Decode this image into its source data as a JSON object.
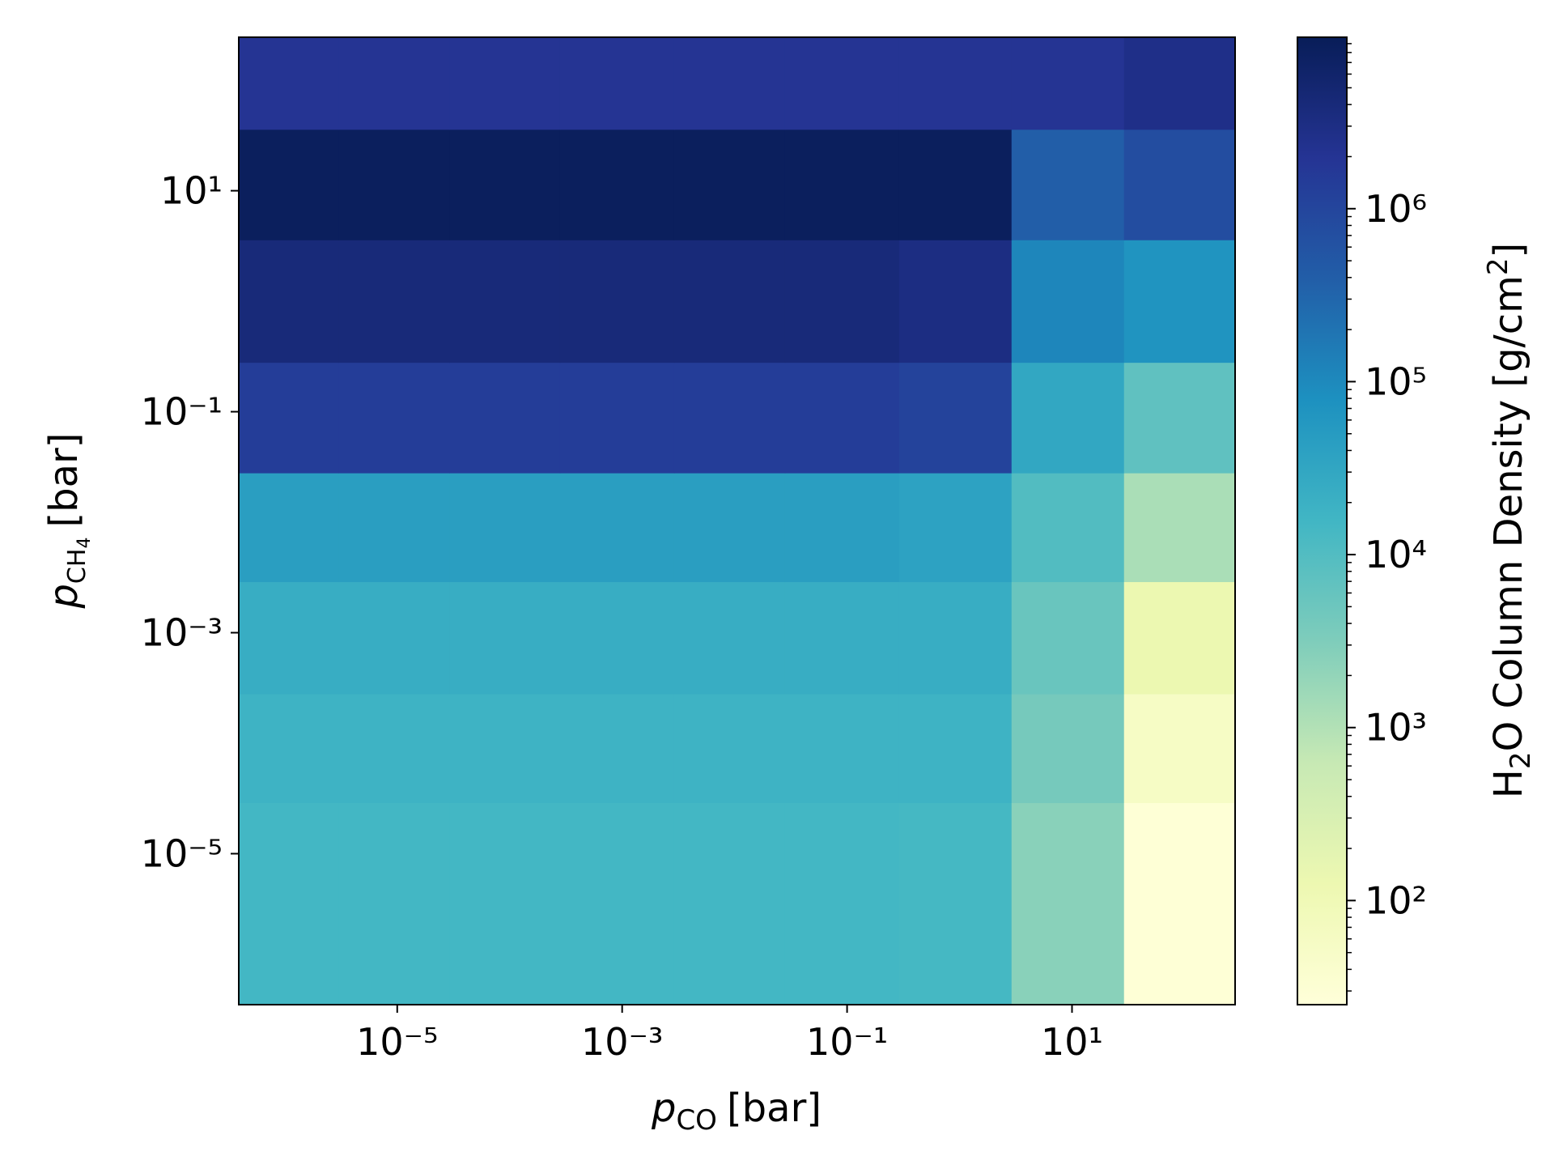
{
  "chart_data": {
    "type": "heatmap",
    "xscale": "log",
    "yscale": "log",
    "x_edges": [
      3.9e-07,
      3e-06,
      2.9e-05,
      0.00028,
      0.0029,
      0.028,
      0.29,
      2.9,
      29,
      282
    ],
    "y_edges": [
      4.3e-07,
      2.9e-05,
      0.00028,
      0.0029,
      0.028,
      0.28,
      3.6,
      36,
      245
    ],
    "xlim": [
      3.9e-07,
      282
    ],
    "ylim": [
      4.3e-07,
      245
    ],
    "xticks": [
      {
        "value": 1e-05,
        "label": "10⁻⁵"
      },
      {
        "value": 0.001,
        "label": "10⁻³"
      },
      {
        "value": 0.1,
        "label": "10⁻¹"
      },
      {
        "value": 10,
        "label": "10¹"
      }
    ],
    "yticks": [
      {
        "value": 1e-05,
        "label": "10⁻⁵"
      },
      {
        "value": 0.001,
        "label": "10⁻³"
      },
      {
        "value": 0.1,
        "label": "10⁻¹"
      },
      {
        "value": 10,
        "label": "10¹"
      }
    ],
    "z": [
      [
        15000,
        15000,
        15000,
        15000,
        15000,
        15000,
        14000,
        2500,
        28
      ],
      [
        18000,
        18000,
        18000,
        18000,
        18000,
        18000,
        18000,
        4000,
        55
      ],
      [
        23000,
        23000,
        23000,
        23000,
        23000,
        23000,
        23000,
        5600,
        130
      ],
      [
        44000,
        44000,
        44000,
        44000,
        44000,
        44000,
        38000,
        10000,
        1200
      ],
      [
        1400000,
        1400000,
        1400000,
        1400000,
        1400000,
        1400000,
        1100000,
        30000,
        7000
      ],
      [
        4000000,
        4000000,
        4000000,
        4000000,
        4000000,
        4000000,
        3200000,
        110000,
        70000
      ],
      [
        8500000,
        8500000,
        8500000,
        8500000,
        8500000,
        8500000,
        8500000,
        390000,
        740000
      ],
      [
        2000000,
        2000000,
        2000000,
        2000000,
        2000000,
        2000000,
        2000000,
        2000000,
        2700000
      ]
    ],
    "cmap": [
      "#ffffd9",
      "#edf8b1",
      "#c7e9b4",
      "#7fcdbb",
      "#41b6c4",
      "#1d91c0",
      "#225ea8",
      "#253494",
      "#081d58"
    ],
    "clim": [
      25,
      9800000.0
    ],
    "cticks": [
      {
        "value": 100,
        "label": "10²"
      },
      {
        "value": 1000,
        "label": "10³"
      },
      {
        "value": 10000,
        "label": "10⁴"
      },
      {
        "value": 100000,
        "label": "10⁵"
      },
      {
        "value": 1000000,
        "label": "10⁶"
      }
    ],
    "xlabel": {
      "symbol": "p",
      "subscript": "CO",
      "unit": "[bar]"
    },
    "ylabel": {
      "symbol": "p",
      "subscript": "CH",
      "subsub": "4",
      "unit": "[bar]"
    },
    "clabel": {
      "a": "H",
      "sub": "2",
      "b": "O Column Density [g/cm",
      "sup": "2",
      "c": "]"
    }
  }
}
